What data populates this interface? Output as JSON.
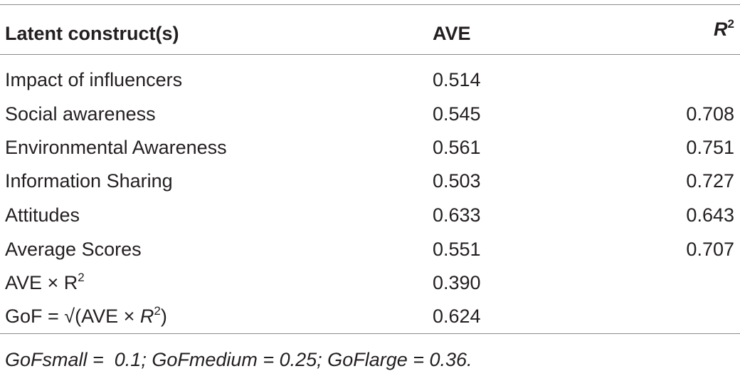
{
  "table": {
    "headers": {
      "construct": "Latent construct(s)",
      "ave": "AVE",
      "r2_base": "R",
      "r2_sup": "2"
    },
    "rows": [
      {
        "name": "Impact of influencers",
        "ave": "0.514",
        "r2": ""
      },
      {
        "name": "Social awareness",
        "ave": "0.545",
        "r2": "0.708"
      },
      {
        "name": "Environmental Awareness",
        "ave": "0.561",
        "r2": "0.751"
      },
      {
        "name": "Information Sharing",
        "ave": "0.503",
        "r2": "0.727"
      },
      {
        "name": "Attitudes",
        "ave": "0.633",
        "r2": "0.643"
      },
      {
        "name": "Average Scores",
        "ave": "0.551",
        "r2": "0.707"
      }
    ],
    "product_row": {
      "label_prefix": "AVE × R",
      "label_sup": "2",
      "ave": "0.390"
    },
    "gof_row": {
      "label_prefix": "GoF = ",
      "radical": "√",
      "label_inner": "(AVE × ",
      "label_r": "R",
      "label_sup": "2",
      "label_close": ")",
      "ave": "0.624"
    },
    "footnote": "GoFsmall =  0.1; GoFmedium = 0.25; GoFlarge = 0.36."
  }
}
